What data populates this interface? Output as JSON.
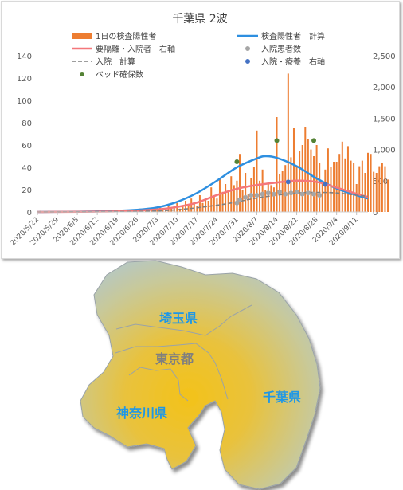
{
  "chart_data": {
    "type": "bar",
    "title": "千葉県 2波",
    "x_dates": [
      "2020/5/22",
      "2020/5/29",
      "2020/6/5",
      "2020/6/12",
      "2020/6/19",
      "2020/6/26",
      "2020/7/3",
      "2020/7/10",
      "2020/7/17",
      "2020/7/24",
      "2020/7/31",
      "2020/8/7",
      "2020/8/14",
      "2020/8/21",
      "2020/8/28",
      "2020/9/4",
      "2020/9/11"
    ],
    "x_start": "2020/5/22",
    "x_end": "2020/9/15",
    "ylim_left": [
      0,
      140
    ],
    "yticks_left": [
      "0",
      "20",
      "40",
      "60",
      "80",
      "100",
      "120",
      "140"
    ],
    "ylim_right": [
      0,
      2500
    ],
    "yticks_right": [
      "0",
      "500",
      "1,000",
      "1,500",
      "2,000",
      "2,500"
    ],
    "grid": false,
    "legend": [
      {
        "label": "1日の検査陽性者",
        "kind": "bar",
        "color": "#ed7d31"
      },
      {
        "label": "検査陽性者　計算",
        "kind": "line",
        "color": "#2e8fe0"
      },
      {
        "label": "要隔離・入院者　右軸",
        "kind": "line",
        "color": "#f4777a"
      },
      {
        "label": "入院患者数",
        "kind": "dot",
        "color": "#a6a6a6"
      },
      {
        "label": "入院　計算",
        "kind": "dash",
        "color": "#7f7f7f"
      },
      {
        "label": "入院・療養　右軸",
        "kind": "dot",
        "color": "#4472c4"
      },
      {
        "label": "ベッド確保数",
        "kind": "dot",
        "color": "#548235"
      }
    ],
    "series": [
      {
        "name": "1日の検査陽性者",
        "axis": "left",
        "start": "2020/5/22",
        "values": [
          0,
          1,
          0,
          0,
          1,
          0,
          0,
          0,
          1,
          0,
          0,
          1,
          0,
          0,
          1,
          0,
          0,
          1,
          0,
          0,
          0,
          1,
          0,
          1,
          0,
          0,
          1,
          2,
          1,
          0,
          1,
          2,
          0,
          1,
          1,
          2,
          3,
          2,
          1,
          3,
          2,
          4,
          3,
          5,
          3,
          2,
          6,
          4,
          5,
          8,
          3,
          6,
          10,
          7,
          12,
          9,
          5,
          15,
          8,
          11,
          10,
          22,
          14,
          12,
          30,
          18,
          25,
          20,
          32,
          24,
          28,
          52,
          20,
          35,
          16,
          30,
          40,
          73,
          28,
          38,
          20,
          26,
          24,
          22,
          85,
          34,
          37,
          42,
          124,
          49,
          75,
          41,
          55,
          60,
          76,
          65,
          56,
          50,
          60,
          44,
          26,
          38,
          57,
          40,
          45,
          45,
          52,
          63,
          48,
          59,
          46,
          44,
          25,
          41,
          46,
          35,
          53,
          52,
          36,
          35,
          41,
          44,
          41,
          29
        ]
      },
      {
        "name": "検査陽性者　計算",
        "axis": "left",
        "points": [
          [
            "2020/5/22",
            0
          ],
          [
            "2020/6/12",
            0.5
          ],
          [
            "2020/6/26",
            2
          ],
          [
            "2020/7/3",
            4
          ],
          [
            "2020/7/10",
            9
          ],
          [
            "2020/7/17",
            17
          ],
          [
            "2020/7/24",
            28
          ],
          [
            "2020/7/31",
            40
          ],
          [
            "2020/8/7",
            48
          ],
          [
            "2020/8/10",
            50
          ],
          [
            "2020/8/14",
            48.5
          ],
          [
            "2020/8/21",
            41
          ],
          [
            "2020/8/28",
            30
          ],
          [
            "2020/9/4",
            21
          ],
          [
            "2020/9/11",
            15
          ],
          [
            "2020/9/15",
            12
          ]
        ]
      },
      {
        "name": "要隔離・入院者　右軸",
        "axis": "right",
        "points": [
          [
            "2020/5/22",
            0
          ],
          [
            "2020/6/19",
            10
          ],
          [
            "2020/7/3",
            40
          ],
          [
            "2020/7/10",
            80
          ],
          [
            "2020/7/17",
            150
          ],
          [
            "2020/7/24",
            270
          ],
          [
            "2020/7/31",
            370
          ],
          [
            "2020/8/7",
            430
          ],
          [
            "2020/8/14",
            470
          ],
          [
            "2020/8/21",
            500
          ],
          [
            "2020/8/28",
            480
          ],
          [
            "2020/9/4",
            390
          ],
          [
            "2020/9/11",
            290
          ],
          [
            "2020/9/15",
            240
          ]
        ]
      },
      {
        "name": "入院　計算",
        "axis": "left",
        "points": [
          [
            "2020/5/22",
            0
          ],
          [
            "2020/6/26",
            0.5
          ],
          [
            "2020/7/10",
            2
          ],
          [
            "2020/7/24",
            6
          ],
          [
            "2020/7/31",
            9
          ],
          [
            "2020/8/7",
            12.5
          ],
          [
            "2020/8/14",
            15
          ],
          [
            "2020/8/21",
            17
          ],
          [
            "2020/8/28",
            17.5
          ],
          [
            "2020/9/4",
            17
          ],
          [
            "2020/9/11",
            15
          ],
          [
            "2020/9/15",
            14
          ]
        ]
      },
      {
        "name": "入院患者数",
        "axis": "left",
        "points": [
          [
            "2020/7/31",
            8
          ],
          [
            "2020/8/1",
            11
          ],
          [
            "2020/8/3",
            13
          ],
          [
            "2020/8/5",
            15
          ],
          [
            "2020/8/7",
            15
          ],
          [
            "2020/8/9",
            16
          ],
          [
            "2020/8/11",
            17
          ],
          [
            "2020/8/13",
            16
          ],
          [
            "2020/8/15",
            18
          ],
          [
            "2020/8/17",
            16
          ],
          [
            "2020/8/19",
            17
          ],
          [
            "2020/8/21",
            18
          ],
          [
            "2020/8/23",
            16
          ],
          [
            "2020/8/25",
            17
          ],
          [
            "2020/8/27",
            16
          ],
          [
            "2020/8/29",
            15
          ]
        ]
      },
      {
        "name": "入院・療養　右軸",
        "axis": "right",
        "points": [
          [
            "2020/8/18",
            480
          ],
          [
            "2020/8/31",
            440
          ]
        ]
      },
      {
        "name": "ベッド確保数",
        "axis": "left",
        "points": [
          [
            "2020/7/31",
            45
          ],
          [
            "2020/8/14",
            64
          ],
          [
            "2020/8/27",
            64
          ]
        ]
      }
    ]
  },
  "map": {
    "labels": {
      "saitama": "埼玉県",
      "tokyo": "東京都",
      "kanagawa": "神奈川県",
      "chiba": "千葉県"
    }
  }
}
